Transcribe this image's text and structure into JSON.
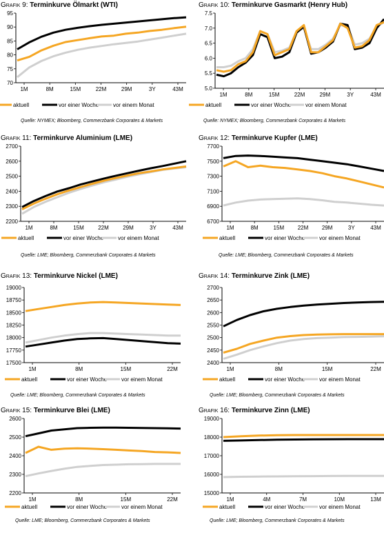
{
  "colors": {
    "aktuell": "#f5a623",
    "week": "#000000",
    "month": "#cfcfcf",
    "axis": "#000000"
  },
  "charts": [
    {
      "id": "wti",
      "prefix": "Grafik 9:",
      "title": "Terminkurve Ölmarkt (WTI)",
      "source": "Quelle: NYMEX; Bloomberg, Commerzbank Corporates & Markets",
      "chart_data": {
        "type": "line",
        "xlabels": [
          "1M",
          "8M",
          "15M",
          "22M",
          "29M",
          "3Y",
          "43M"
        ],
        "ylim": [
          70,
          95
        ],
        "yticks": [
          70,
          75,
          80,
          85,
          90,
          95
        ],
        "series": [
          {
            "name": "aktuell",
            "values": [
              78.0,
              79.3,
              81.6,
              83.3,
              84.6,
              85.3,
              86.0,
              86.6,
              86.9,
              87.6,
              88.0,
              88.6,
              89.0,
              89.6,
              90.1
            ]
          },
          {
            "name": "vor einer Woche",
            "values": [
              82.0,
              84.5,
              86.5,
              88.0,
              89.0,
              89.7,
              90.3,
              90.8,
              91.2,
              91.6,
              92.0,
              92.4,
              92.8,
              93.2,
              93.5
            ]
          },
          {
            "name": "vor einem Monat",
            "values": [
              72.0,
              75.5,
              77.8,
              79.5,
              80.8,
              81.8,
              82.6,
              83.2,
              83.8,
              84.3,
              84.8,
              85.5,
              86.2,
              86.9,
              87.6
            ]
          }
        ]
      }
    },
    {
      "id": "henryhub",
      "prefix": "Grafik 10:",
      "title": "Terminkurve Gasmarkt (Henry Hub)",
      "source": "Quelle: NYMEX; Bloomberg, Commerzbank Corporates & Markets",
      "chart_data": {
        "type": "line",
        "xlabels": [
          "1M",
          "8M",
          "15M",
          "22M",
          "29M",
          "3Y",
          "43M"
        ],
        "ylim": [
          5.0,
          7.5
        ],
        "yticks": [
          5.0,
          5.5,
          6.0,
          6.5,
          7.0,
          7.5
        ],
        "series": [
          {
            "name": "aktuell",
            "values": [
              5.6,
              5.55,
              5.6,
              5.8,
              5.9,
              6.2,
              6.9,
              6.8,
              6.1,
              6.2,
              6.3,
              6.9,
              7.1,
              6.2,
              6.2,
              6.4,
              6.6,
              7.15,
              7.0,
              6.35,
              6.4,
              6.6,
              7.1,
              7.2
            ]
          },
          {
            "name": "vor einer Woche",
            "values": [
              5.45,
              5.4,
              5.5,
              5.7,
              5.85,
              6.1,
              6.8,
              6.7,
              6.0,
              6.05,
              6.2,
              6.85,
              7.05,
              6.15,
              6.2,
              6.35,
              6.55,
              7.15,
              7.1,
              6.3,
              6.35,
              6.5,
              7.0,
              7.3
            ]
          },
          {
            "name": "vor einem Monat",
            "values": [
              5.7,
              5.7,
              5.75,
              5.9,
              6.0,
              6.3,
              6.9,
              6.8,
              6.2,
              6.25,
              6.35,
              6.9,
              7.0,
              6.3,
              6.3,
              6.45,
              6.65,
              7.1,
              7.05,
              6.45,
              6.5,
              6.65,
              7.05,
              7.2
            ]
          }
        ]
      }
    },
    {
      "id": "aluminium",
      "prefix": "Grafik 11:",
      "title": "Terminkurve Aluminium (LME)",
      "source": "Quelle: LME; Bloomberg, Commerzbank Corporates & Markets",
      "chart_data": {
        "type": "line",
        "xlabels": [
          "1M",
          "8M",
          "15M",
          "22M",
          "29M",
          "3Y",
          "43M"
        ],
        "ylim": [
          2200,
          2700
        ],
        "yticks": [
          2200,
          2300,
          2400,
          2500,
          2600,
          2700
        ],
        "series": [
          {
            "name": "aktuell",
            "values": [
              2280,
              2318,
              2350,
              2380,
              2405,
              2428,
              2450,
              2470,
              2488,
              2505,
              2520,
              2532,
              2545,
              2555,
              2565
            ]
          },
          {
            "name": "vor einer Woche",
            "values": [
              2295,
              2335,
              2368,
              2398,
              2420,
              2445,
              2465,
              2485,
              2503,
              2520,
              2537,
              2553,
              2568,
              2584,
              2600
            ]
          },
          {
            "name": "vor einem Monat",
            "values": [
              2250,
              2295,
              2330,
              2360,
              2390,
              2415,
              2438,
              2460,
              2478,
              2497,
              2513,
              2528,
              2542,
              2552,
              2560
            ]
          }
        ]
      }
    },
    {
      "id": "kupfer",
      "prefix": "Grafik 12:",
      "title": "Terminkurve Kupfer (LME)",
      "source": "Quelle: LME; Bloomberg, Commerzbank Corporates & Markets",
      "chart_data": {
        "type": "line",
        "xlabels": [
          "1M",
          "8M",
          "15M",
          "22M",
          "29M",
          "3Y",
          "43M"
        ],
        "ylim": [
          6700,
          7700
        ],
        "yticks": [
          6700,
          6900,
          7100,
          7300,
          7500,
          7700
        ],
        "series": [
          {
            "name": "aktuell",
            "values": [
              7430,
              7500,
              7420,
              7440,
              7420,
              7410,
              7390,
              7370,
              7340,
              7300,
              7270,
              7230,
              7190,
              7150
            ]
          },
          {
            "name": "vor einer Woche",
            "values": [
              7540,
              7570,
              7575,
              7570,
              7560,
              7550,
              7540,
              7520,
              7500,
              7480,
              7460,
              7430,
              7400,
              7370
            ]
          },
          {
            "name": "vor einem Monat",
            "values": [
              6910,
              6950,
              6975,
              6990,
              6995,
              7000,
              7005,
              6995,
              6980,
              6960,
              6950,
              6935,
              6920,
              6910
            ]
          }
        ]
      }
    },
    {
      "id": "nickel",
      "prefix": "Grafik 13:",
      "title": "Terminkurve Nickel (LME)",
      "source": "Quelle: LME; Bloomberg, Commerzbank Corporates & Markets",
      "chart_data": {
        "type": "line",
        "xlabels": [
          "1M",
          "8M",
          "15M",
          "22M"
        ],
        "ylim": [
          17500,
          19000
        ],
        "yticks": [
          17500,
          17750,
          18000,
          18250,
          18500,
          18750,
          19000
        ],
        "series": [
          {
            "name": "aktuell",
            "values": [
              18530,
              18570,
              18610,
              18650,
              18680,
              18700,
              18710,
              18700,
              18690,
              18680,
              18670,
              18660,
              18650
            ]
          },
          {
            "name": "vor einer Woche",
            "values": [
              17820,
              17860,
              17900,
              17940,
              17970,
              17985,
              17990,
              17970,
              17950,
              17930,
              17910,
              17890,
              17880
            ]
          },
          {
            "name": "vor einem Monat",
            "values": [
              17900,
              17950,
              18000,
              18040,
              18070,
              18090,
              18090,
              18080,
              18070,
              18060,
              18050,
              18040,
              18040
            ]
          }
        ]
      }
    },
    {
      "id": "zink",
      "prefix": "Grafik 14:",
      "title": "Terminkurve Zink (LME)",
      "source": "Quelle: LME; Bloomberg, Commerzbank Corporates & Markets",
      "chart_data": {
        "type": "line",
        "xlabels": [
          "1M",
          "8M",
          "15M",
          "22M"
        ],
        "ylim": [
          2400,
          2700
        ],
        "yticks": [
          2400,
          2450,
          2500,
          2550,
          2600,
          2650,
          2700
        ],
        "series": [
          {
            "name": "aktuell",
            "values": [
              2440,
              2455,
              2475,
              2488,
              2500,
              2506,
              2510,
              2512,
              2513,
              2514,
              2514,
              2514,
              2514
            ]
          },
          {
            "name": "vor einer Woche",
            "values": [
              2545,
              2570,
              2590,
              2605,
              2615,
              2622,
              2628,
              2632,
              2635,
              2638,
              2640,
              2642,
              2643
            ]
          },
          {
            "name": "vor einem Monat",
            "values": [
              2415,
              2432,
              2450,
              2465,
              2478,
              2488,
              2494,
              2498,
              2500,
              2502,
              2503,
              2504,
              2505
            ]
          }
        ]
      }
    },
    {
      "id": "blei",
      "prefix": "Grafik 15:",
      "title": "Terminkurve Blei (LME)",
      "source": "Quelle: LME; Bloomberg, Commerzbank Corporates & Markets",
      "chart_data": {
        "type": "line",
        "xlabels": [
          "1M",
          "8M",
          "15M",
          "22M"
        ],
        "ylim": [
          2200,
          2600
        ],
        "yticks": [
          2200,
          2300,
          2400,
          2500,
          2600
        ],
        "series": [
          {
            "name": "aktuell",
            "values": [
              2415,
              2448,
              2432,
              2438,
              2440,
              2438,
              2435,
              2432,
              2428,
              2425,
              2420,
              2418,
              2415
            ]
          },
          {
            "name": "vor einer Woche",
            "values": [
              2505,
              2520,
              2535,
              2542,
              2548,
              2550,
              2551,
              2551,
              2550,
              2549,
              2548,
              2547,
              2546
            ]
          },
          {
            "name": "vor einem Monat",
            "values": [
              2290,
              2305,
              2318,
              2330,
              2340,
              2345,
              2350,
              2352,
              2354,
              2355,
              2356,
              2356,
              2356
            ]
          }
        ]
      }
    },
    {
      "id": "zinn",
      "prefix": "Grafik 16:",
      "title": "Terminkurve Zinn (LME)",
      "source": "Quelle: LME; Bloomberg, Commerzbank Corporates & Markets",
      "chart_data": {
        "type": "line",
        "xlabels": [
          "1M",
          "4M",
          "7M",
          "10M",
          "13M"
        ],
        "ylim": [
          15000,
          19000
        ],
        "yticks": [
          15000,
          16000,
          17000,
          18000,
          19000
        ],
        "series": [
          {
            "name": "aktuell",
            "values": [
              18000,
              18050,
              18080,
              18100,
              18110,
              18110,
              18110,
              18110,
              18110,
              18110
            ]
          },
          {
            "name": "vor einer Woche",
            "values": [
              17800,
              17820,
              17840,
              17860,
              17870,
              17880,
              17885,
              17890,
              17890,
              17890
            ]
          },
          {
            "name": "vor einem Monat",
            "values": [
              15850,
              15870,
              15880,
              15890,
              15900,
              15905,
              15910,
              15915,
              15920,
              15920
            ]
          }
        ]
      }
    }
  ]
}
